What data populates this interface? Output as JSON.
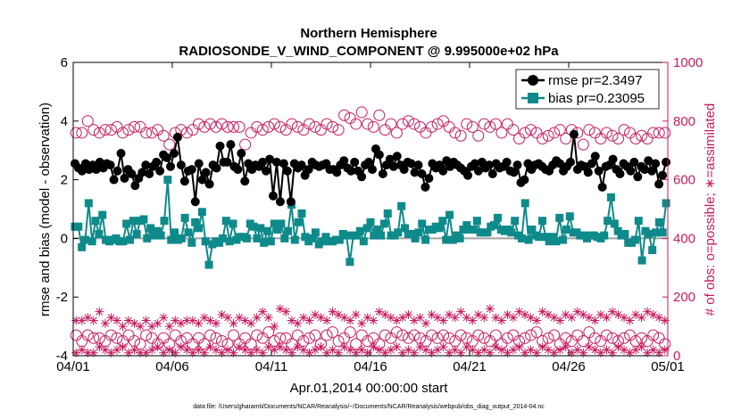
{
  "chart_data": {
    "type": "line",
    "title": "Northern Hemisphere",
    "subtitle": "RADIOSONDE_V_WIND_COMPONENT @ 9.995000e+02 hPa",
    "xlabel": "Apr.01,2014 00:00:00 start",
    "ylabel_left": "rmse and bias (model - observation)",
    "ylabel_right": "# of obs: o=possible; ∗=assimilated",
    "footnote": "data file: /Users/gharamti/Documents/NCAR/Reanalysis/~/Documents/NCAR/Reanalysis/webpub/obs_diag_output_2014-04.nc",
    "xlim": [
      0,
      30
    ],
    "ylim_left": [
      -4,
      6
    ],
    "ylim_right": [
      0,
      1000
    ],
    "x_ticks": [
      0,
      5,
      10,
      15,
      20,
      25,
      30
    ],
    "x_tick_labels": [
      "04/01",
      "04/06",
      "04/11",
      "04/16",
      "04/21",
      "04/26",
      "05/01"
    ],
    "y_ticks_left": [
      -4,
      -2,
      0,
      2,
      4,
      6
    ],
    "y_tick_labels_left": [
      "-4",
      "-2",
      "0",
      "2",
      "4",
      "6"
    ],
    "y_ticks_right": [
      0,
      200,
      400,
      600,
      800,
      1000
    ],
    "y_tick_labels_right": [
      "0",
      "200",
      "400",
      "600",
      "800",
      "1000"
    ],
    "colors": {
      "rmse": "#000000",
      "bias": "#0e8a8a",
      "obs": "#c8195f",
      "zero_line": "#a0a0a0"
    },
    "legend": {
      "placement": "top-right",
      "entries": [
        "rmse pr=2.3497",
        "bias pr=0.23095"
      ]
    },
    "series": [
      {
        "name": "rmse",
        "axis": "left",
        "values": [
          2.55,
          2.4,
          2.3,
          2.55,
          2.35,
          2.5,
          2.35,
          2.6,
          2.4,
          2.55,
          2.5,
          2.0,
          2.3,
          2.9,
          2.05,
          2.35,
          2.2,
          1.8,
          2.05,
          2.25,
          2.5,
          2.2,
          2.45,
          2.6,
          2.3,
          2.85,
          2.75,
          2.45,
          2.9,
          3.45,
          2.5,
          1.95,
          2.3,
          2.35,
          1.25,
          2.55,
          2.0,
          2.25,
          1.85,
          2.5,
          2.4,
          3.15,
          2.6,
          2.6,
          3.2,
          2.45,
          2.35,
          2.9,
          1.95,
          2.55,
          2.35,
          2.5,
          2.45,
          2.6,
          2.3,
          2.7,
          1.45,
          2.6,
          1.25,
          2.55,
          2.3,
          1.25,
          2.55,
          2.4,
          2.5,
          2.15,
          2.35,
          2.6,
          2.5,
          2.45,
          2.5,
          2.55,
          2.35,
          2.35,
          2.25,
          2.5,
          2.65,
          2.4,
          2.3,
          2.6,
          2.3,
          2.1,
          2.5,
          2.6,
          2.35,
          3.05,
          2.85,
          2.2,
          2.5,
          2.7,
          2.45,
          2.8,
          2.5,
          2.35,
          2.6,
          2.55,
          2.25,
          2.5,
          2.2,
          1.75,
          2.05,
          2.55,
          2.4,
          2.5,
          2.3,
          2.65,
          2.45,
          2.6,
          2.5,
          2.4,
          2.3,
          2.15,
          2.45,
          2.55,
          2.3,
          2.6,
          2.4,
          2.5,
          2.2,
          2.55,
          2.4,
          2.45,
          2.6,
          2.3,
          2.25,
          2.5,
          1.9,
          2.0,
          2.55,
          2.35,
          2.5,
          2.55,
          2.45,
          2.35,
          2.3,
          2.5,
          2.65,
          2.55,
          2.3,
          2.45,
          2.6,
          3.55,
          2.35,
          2.5,
          2.45,
          2.25,
          2.55,
          2.8,
          2.3,
          1.75,
          2.45,
          2.5,
          2.7,
          2.35,
          2.2,
          2.55,
          2.45,
          2.3,
          2.6,
          2.1,
          2.45,
          2.35,
          2.65,
          2.3,
          2.55,
          1.85,
          2.15,
          2.6
        ]
      },
      {
        "name": "bias",
        "axis": "left",
        "values": [
          0.4,
          0.4,
          -0.3,
          -0.05,
          1.2,
          -0.1,
          0.6,
          0.15,
          0.8,
          -0.05,
          -0.1,
          -0.05,
          0.0,
          -0.1,
          -0.1,
          0.5,
          -0.05,
          0.6,
          0.15,
          0.6,
          0.65,
          0.0,
          0.35,
          0.1,
          0.25,
          0.1,
          0.6,
          2.0,
          -0.05,
          0.2,
          -0.05,
          0.0,
          0.7,
          0.2,
          -0.15,
          0.55,
          0.35,
          0.9,
          -0.1,
          -0.9,
          -0.2,
          -0.1,
          -0.15,
          0.0,
          0.6,
          -0.1,
          0.5,
          -0.05,
          0.05,
          0.05,
          0.0,
          0.5,
          0.4,
          0.0,
          0.35,
          -0.15,
          0.25,
          -0.1,
          0.5,
          0.3,
          0.5,
          0.0,
          0.25,
          1.15,
          -0.05,
          0.55,
          0.85,
          0.05,
          -0.1,
          0.0,
          0.2,
          -0.2,
          -0.1,
          0.05,
          -0.1,
          -0.1,
          -0.05,
          -0.05,
          0.15,
          0.1,
          -0.8,
          0.1,
          0.1,
          0.25,
          -0.1,
          0.35,
          0.55,
          0.1,
          0.3,
          0.1,
          0.5,
          0.85,
          0.1,
          0.1,
          0.2,
          1.1,
          0.35,
          0.15,
          0.15,
          0.0,
          0.2,
          0.5,
          -0.05,
          0.3,
          0.3,
          0.4,
          0.35,
          0.6,
          -0.05,
          0.8,
          -0.05,
          0.1,
          0.0,
          0.3,
          0.45,
          0.3,
          0.3,
          0.6,
          0.2,
          0.2,
          0.2,
          0.4,
          0.45,
          0.7,
          0.3,
          0.25,
          0.3,
          0.2,
          0.6,
          0.1,
          0.0,
          1.2,
          -0.05,
          0.3,
          0.1,
          0.05,
          0.6,
          0.05,
          -0.1,
          0.05,
          -0.1,
          0.7,
          -0.05,
          0.3,
          0.75,
          0.2,
          0.2,
          0.1,
          0.1,
          0.0,
          0.1,
          0.1,
          0.05,
          0.0,
          0.1,
          0.6,
          1.4,
          0.5,
          0.25,
          0.1,
          0.15,
          -0.15,
          -0.15,
          -0.05,
          0.6,
          -0.75,
          0.25,
          0.15,
          -0.4,
          0.2,
          0.55,
          0.2,
          1.2
        ]
      },
      {
        "name": "possible",
        "axis": "right",
        "values": [
          760,
          760,
          800,
          770,
          760,
          770,
          770,
          780,
          760,
          770,
          780,
          780,
          760,
          760,
          770,
          750,
          720,
          760,
          770,
          760,
          770,
          790,
          780,
          790,
          780,
          790,
          780,
          780,
          780,
          720,
          760,
          780,
          770,
          780,
          790,
          780,
          770,
          790,
          780,
          770,
          790,
          780,
          770,
          790,
          780,
          770,
          820,
          810,
          790,
          830,
          790,
          780,
          820,
          770,
          790,
          760,
          790,
          800,
          790,
          780,
          760,
          780,
          790,
          800,
          780,
          760,
          750,
          790,
          780,
          750,
          790,
          780,
          790,
          760,
          790,
          770,
          740,
          760,
          770,
          760,
          740,
          750,
          760,
          770,
          740,
          770,
          760,
          720,
          770,
          760,
          740,
          760,
          750,
          740,
          770,
          760,
          740,
          750,
          740,
          760,
          760,
          760
        ]
      },
      {
        "name": "possible_low",
        "axis": "right",
        "values": [
          70,
          50,
          70,
          60,
          60,
          50,
          70,
          60,
          50,
          70,
          50,
          40,
          70,
          60,
          40,
          60,
          40,
          70,
          50,
          60,
          40,
          60,
          40,
          70,
          60,
          50,
          40,
          70,
          40,
          60,
          40,
          70,
          60,
          80,
          50,
          60,
          60,
          40,
          70,
          50,
          60,
          70,
          40,
          70,
          80,
          50,
          60,
          80,
          40,
          70,
          50,
          60,
          40,
          70,
          60,
          80,
          70,
          60,
          70,
          60,
          50,
          70,
          60,
          70,
          60,
          50,
          70,
          60,
          50,
          70,
          60,
          50,
          70,
          40,
          60,
          70,
          50,
          60,
          70,
          80,
          50,
          60,
          70,
          40,
          60,
          50,
          70,
          50,
          80,
          60,
          50,
          70,
          60,
          50,
          60,
          70,
          50,
          60,
          50,
          70,
          60,
          40
        ]
      },
      {
        "name": "assimilated",
        "axis": "right",
        "values": [
          120,
          120,
          130,
          120,
          150,
          110,
          130,
          120,
          100,
          120,
          110,
          100,
          120,
          100,
          110,
          130,
          100,
          120,
          110,
          120,
          120,
          110,
          130,
          120,
          110,
          140,
          130,
          110,
          130,
          120,
          110,
          130,
          150,
          130,
          100,
          160,
          150,
          120,
          110,
          130,
          120,
          140,
          130,
          120,
          150,
          140,
          130,
          120,
          140,
          110,
          130,
          120,
          150,
          140,
          130,
          120,
          130,
          140,
          120,
          130,
          110,
          140,
          130,
          120,
          140,
          130,
          150,
          130,
          120,
          140,
          130,
          160,
          130,
          120,
          140,
          130,
          150,
          140,
          130,
          120,
          150,
          140,
          130,
          120,
          140,
          130,
          150,
          140,
          130,
          120,
          140,
          130,
          150,
          140,
          130,
          120,
          140,
          130,
          150,
          140,
          130,
          120
        ]
      },
      {
        "name": "assimilated_low",
        "axis": "right",
        "values": [
          10,
          20,
          10,
          10,
          30,
          20,
          10,
          20,
          30,
          10,
          20,
          10,
          10,
          20,
          30,
          10,
          20,
          10,
          30,
          20,
          10,
          20,
          10,
          30,
          20,
          10,
          20,
          10,
          30,
          20,
          10,
          20,
          10,
          30,
          20,
          30,
          20,
          10,
          30,
          20,
          10,
          20,
          30,
          10,
          20,
          10,
          30,
          20,
          10,
          20,
          10,
          30,
          20,
          10,
          20,
          30,
          10,
          20,
          10,
          30,
          20,
          10,
          20,
          30,
          10,
          20,
          10,
          30,
          20,
          10,
          20,
          10,
          30,
          20,
          10,
          20,
          30,
          10,
          20,
          10,
          30,
          20,
          10,
          20,
          30,
          10,
          20,
          10,
          30,
          20,
          10,
          20,
          10,
          30,
          20,
          10,
          20,
          30,
          10,
          20,
          10,
          20
        ]
      }
    ]
  }
}
